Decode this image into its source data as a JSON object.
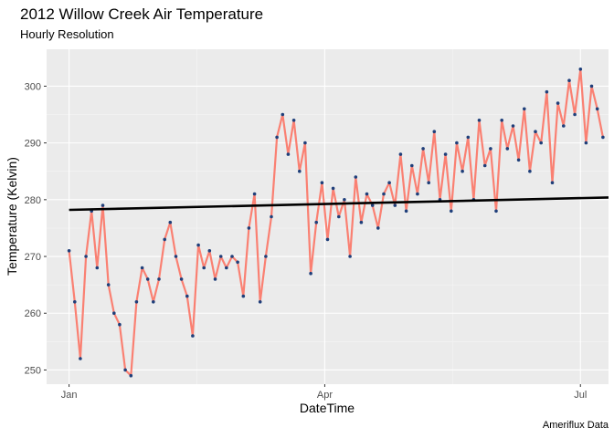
{
  "chart_data": {
    "type": "line",
    "title": "2012 Willow Creek Air Temperature",
    "subtitle": "Hourly Resolution",
    "xlabel": "DateTime",
    "ylabel": "Temperature (Kelvin)",
    "caption": "Ameriflux Data",
    "x_ticks": [
      {
        "label": "Jan",
        "day": 0
      },
      {
        "label": "Apr",
        "day": 91
      },
      {
        "label": "Jul",
        "day": 182
      }
    ],
    "xlim_days": [
      -8,
      192
    ],
    "y_ticks": [
      250,
      260,
      270,
      280,
      290,
      300
    ],
    "ylim": [
      247.5,
      306.5
    ],
    "grid": true,
    "series": [
      {
        "line_color": "#FA8072",
        "point_color": "#1F3F7A",
        "x_day": [
          0,
          2,
          4,
          6,
          8,
          10,
          12,
          14,
          16,
          18,
          20,
          22,
          24,
          26,
          28,
          30,
          32,
          34,
          36,
          38,
          40,
          42,
          44,
          46,
          48,
          50,
          52,
          54,
          56,
          58,
          60,
          62,
          64,
          66,
          68,
          70,
          72,
          74,
          76,
          78,
          80,
          82,
          84,
          86,
          88,
          90,
          92,
          94,
          96,
          98,
          100,
          102,
          104,
          106,
          108,
          110,
          112,
          114,
          116,
          118,
          120,
          122,
          124,
          126,
          128,
          130,
          132,
          134,
          136,
          138,
          140,
          142,
          144,
          146,
          148,
          150,
          152,
          154,
          156,
          158,
          160,
          162,
          164,
          166,
          168,
          170,
          172,
          174,
          176,
          178,
          180,
          182,
          184,
          186,
          188,
          190
        ],
        "values": [
          271,
          262,
          252,
          270,
          278,
          268,
          279,
          265,
          260,
          258,
          250,
          249,
          262,
          268,
          266,
          262,
          266,
          273,
          276,
          270,
          266,
          263,
          256,
          272,
          268,
          271,
          266,
          270,
          268,
          270,
          269,
          263,
          275,
          281,
          262,
          270,
          277,
          291,
          295,
          288,
          294,
          285,
          290,
          267,
          276,
          283,
          273,
          282,
          277,
          280,
          270,
          284,
          276,
          281,
          279,
          275,
          281,
          283,
          279,
          288,
          278,
          286,
          281,
          289,
          283,
          292,
          280,
          288,
          278,
          290,
          285,
          291,
          280,
          294,
          286,
          289,
          278,
          294,
          289,
          293,
          287,
          296,
          285,
          292,
          290,
          299,
          283,
          297,
          293,
          301,
          295,
          303,
          290,
          300,
          296,
          291
        ]
      },
      {
        "name": "trend",
        "line_color": "#000000",
        "x_day": [
          0,
          192
        ],
        "values": [
          278.2,
          280.4
        ]
      }
    ]
  }
}
